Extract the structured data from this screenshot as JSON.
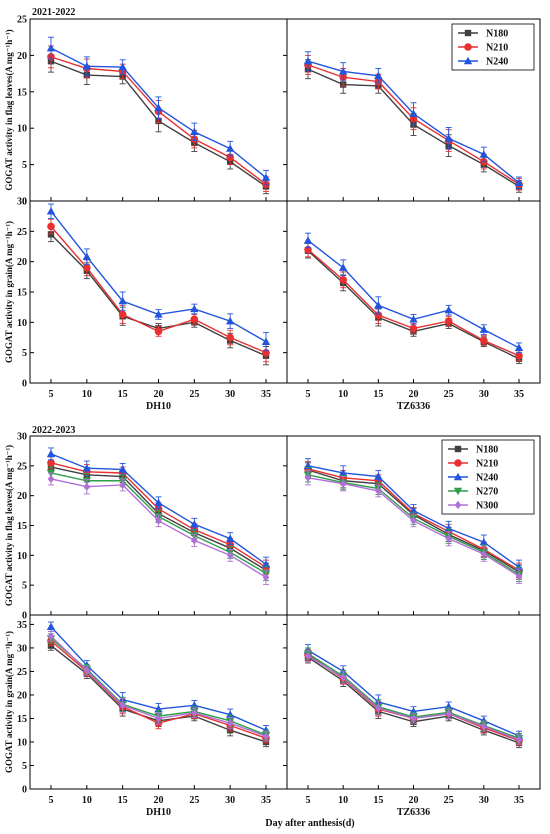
{
  "figure": {
    "x_axis_label": "Day after anthesis(d)"
  },
  "chart_data": [
    {
      "type": "line",
      "year": "2021-2022",
      "ylabel_leaf": "GOGAT activity in flag leaves(A mg⁻¹h⁻¹)",
      "ylabel_grain": "GOGAT activity in grain(A mg⁻¹h⁻¹)",
      "x": [
        5,
        10,
        15,
        20,
        25,
        30,
        35
      ],
      "leaf_ylim": [
        0,
        25
      ],
      "leaf_yticks": [
        0,
        5,
        10,
        15,
        20,
        25
      ],
      "grain_ylim": [
        0,
        30
      ],
      "grain_yticks": [
        0,
        5,
        10,
        15,
        20,
        25,
        30
      ],
      "legend_position": "top-right",
      "cultivars": [
        "DH10",
        "TZ6336"
      ],
      "series": [
        {
          "name": "N180",
          "color": "#404040",
          "marker": "square",
          "leaf": [
            [
              19.2,
              17.3,
              17.1,
              11.0,
              8.0,
              5.4,
              2.0
            ],
            [
              18.1,
              16.0,
              15.8,
              10.5,
              7.6,
              5.0,
              2.0
            ]
          ],
          "leaf_err": [
            [
              1.5,
              1.3,
              1.0,
              1.5,
              1.2,
              1.0,
              1.0
            ],
            [
              1.3,
              1.2,
              1.0,
              1.5,
              1.5,
              1.0,
              0.8
            ]
          ],
          "grain": [
            [
              24.5,
              18.5,
              11.0,
              9.0,
              10.0,
              7.0,
              4.5
            ],
            [
              21.8,
              16.5,
              10.8,
              8.5,
              9.8,
              6.8,
              4.0
            ]
          ],
          "grain_err": [
            [
              1.2,
              1.3,
              1.5,
              0.8,
              0.8,
              1.2,
              1.5
            ],
            [
              1.2,
              1.3,
              1.4,
              0.8,
              0.8,
              0.8,
              0.8
            ]
          ]
        },
        {
          "name": "N210",
          "color": "#e83030",
          "marker": "circle",
          "leaf": [
            [
              19.8,
              18.2,
              17.8,
              12.3,
              8.5,
              6.0,
              2.3
            ],
            [
              18.7,
              17.0,
              16.4,
              11.3,
              8.3,
              5.4,
              2.3
            ]
          ],
          "leaf_err": [
            [
              1.5,
              1.3,
              1.0,
              1.5,
              1.2,
              1.0,
              1.0
            ],
            [
              1.3,
              1.2,
              1.0,
              1.5,
              1.5,
              1.0,
              0.8
            ]
          ],
          "grain": [
            [
              25.8,
              19.0,
              11.3,
              8.5,
              10.5,
              7.5,
              5.0
            ],
            [
              22.0,
              17.0,
              11.2,
              9.0,
              10.2,
              7.0,
              4.5
            ]
          ],
          "grain_err": [
            [
              1.2,
              1.3,
              1.5,
              0.8,
              0.8,
              1.2,
              1.5
            ],
            [
              1.2,
              1.3,
              1.4,
              0.8,
              0.8,
              0.8,
              0.8
            ]
          ]
        },
        {
          "name": "N240",
          "color": "#2255dd",
          "marker": "triangle-up",
          "leaf": [
            [
              21.0,
              18.5,
              18.4,
              12.8,
              9.5,
              7.2,
              3.2
            ],
            [
              19.2,
              17.8,
              17.2,
              12.0,
              8.6,
              6.4,
              2.5
            ]
          ],
          "leaf_err": [
            [
              1.5,
              1.3,
              1.0,
              1.5,
              1.2,
              1.0,
              1.0
            ],
            [
              1.3,
              1.2,
              1.0,
              1.5,
              1.5,
              1.0,
              0.8
            ]
          ],
          "grain": [
            [
              28.3,
              20.8,
              13.5,
              11.3,
              12.2,
              10.2,
              6.8
            ],
            [
              23.5,
              19.0,
              12.8,
              10.5,
              12.0,
              8.8,
              5.8
            ]
          ],
          "grain_err": [
            [
              1.2,
              1.3,
              1.5,
              0.8,
              0.8,
              1.2,
              1.5
            ],
            [
              1.2,
              1.3,
              1.4,
              0.8,
              0.8,
              0.8,
              0.8
            ]
          ]
        }
      ]
    },
    {
      "type": "line",
      "year": "2022-2023",
      "ylabel_leaf": "GOGAT activity in flag leaves(A mg⁻¹h⁻¹)",
      "ylabel_grain": "GOGAT activity in grain(A mg⁻¹h⁻¹)",
      "x": [
        5,
        10,
        15,
        20,
        25,
        30,
        35
      ],
      "leaf_ylim": [
        0,
        30
      ],
      "leaf_yticks": [
        0,
        5,
        10,
        15,
        20,
        25,
        30
      ],
      "grain_ylim": [
        0,
        37
      ],
      "grain_yticks": [
        0,
        5,
        10,
        15,
        20,
        25,
        30,
        35
      ],
      "legend_position": "top-right",
      "cultivars": [
        "DH10",
        "TZ6336"
      ],
      "series": [
        {
          "name": "N180",
          "color": "#404040",
          "marker": "square",
          "leaf": [
            [
              24.8,
              23.5,
              23.2,
              17.0,
              13.8,
              11.2,
              7.5
            ],
            [
              24.3,
              22.5,
              22.0,
              16.8,
              13.5,
              10.8,
              7.2
            ]
          ],
          "leaf_err": [
            [
              1.0,
              1.2,
              1.0,
              1.0,
              1.0,
              1.0,
              1.2
            ],
            [
              1.2,
              1.2,
              1.0,
              1.0,
              1.2,
              1.2,
              1.2
            ]
          ],
          "grain": [
            [
              30.5,
              24.5,
              17.0,
              14.5,
              15.5,
              12.5,
              10.0
            ],
            [
              28.0,
              23.0,
              16.5,
              14.3,
              15.5,
              12.5,
              9.8
            ]
          ],
          "grain_err": [
            [
              1.0,
              1.0,
              1.5,
              1.2,
              1.0,
              1.2,
              1.0
            ],
            [
              1.2,
              1.2,
              1.5,
              1.0,
              1.0,
              1.0,
              1.0
            ]
          ]
        },
        {
          "name": "N210",
          "color": "#e83030",
          "marker": "circle",
          "leaf": [
            [
              25.5,
              24.0,
              23.8,
              17.8,
              14.3,
              11.8,
              8.0
            ],
            [
              24.5,
              23.0,
              22.5,
              17.0,
              14.0,
              11.0,
              7.5
            ]
          ],
          "leaf_err": [
            [
              1.0,
              1.2,
              1.0,
              1.0,
              1.0,
              1.0,
              1.2
            ],
            [
              1.2,
              1.2,
              1.0,
              1.0,
              1.2,
              1.2,
              1.2
            ]
          ],
          "grain": [
            [
              31.5,
              25.0,
              17.5,
              14.0,
              16.0,
              13.5,
              10.8
            ],
            [
              28.5,
              23.5,
              17.0,
              15.0,
              16.0,
              13.0,
              10.3
            ]
          ],
          "grain_err": [
            [
              1.0,
              1.0,
              1.5,
              1.2,
              1.0,
              1.2,
              1.0
            ],
            [
              1.2,
              1.2,
              1.5,
              1.0,
              1.0,
              1.0,
              1.0
            ]
          ]
        },
        {
          "name": "N240",
          "color": "#2255dd",
          "marker": "triangle-up",
          "leaf": [
            [
              27.0,
              24.6,
              24.4,
              18.8,
              15.2,
              12.8,
              8.5
            ],
            [
              25.0,
              23.8,
              23.2,
              17.5,
              14.5,
              12.2,
              8.0
            ]
          ],
          "leaf_err": [
            [
              1.0,
              1.2,
              1.0,
              1.0,
              1.0,
              1.0,
              1.2
            ],
            [
              1.2,
              1.2,
              1.0,
              1.0,
              1.2,
              1.2,
              1.2
            ]
          ],
          "grain": [
            [
              34.5,
              26.3,
              19.0,
              17.0,
              17.8,
              15.8,
              12.5
            ],
            [
              29.5,
              25.0,
              18.5,
              16.5,
              17.5,
              14.5,
              11.3
            ]
          ],
          "grain_err": [
            [
              1.0,
              1.0,
              1.5,
              1.2,
              1.0,
              1.2,
              1.0
            ],
            [
              1.2,
              1.2,
              1.5,
              1.0,
              1.0,
              1.0,
              1.0
            ]
          ]
        },
        {
          "name": "N270",
          "color": "#2e9e4a",
          "marker": "triangle-down",
          "leaf": [
            [
              23.8,
              22.5,
              22.5,
              16.5,
              13.3,
              10.5,
              7.0
            ],
            [
              23.5,
              22.2,
              21.2,
              16.2,
              13.2,
              10.5,
              6.8
            ]
          ],
          "leaf_err": [
            [
              1.0,
              1.2,
              1.0,
              1.0,
              1.0,
              1.0,
              1.2
            ],
            [
              1.2,
              1.2,
              1.0,
              1.0,
              1.2,
              1.2,
              1.2
            ]
          ],
          "grain": [
            [
              32.0,
              25.5,
              18.0,
              15.5,
              16.5,
              14.5,
              11.5
            ],
            [
              28.8,
              24.0,
              17.5,
              15.3,
              16.3,
              13.5,
              10.8
            ]
          ],
          "grain_err": [
            [
              1.0,
              1.0,
              1.5,
              1.2,
              1.0,
              1.2,
              1.0
            ],
            [
              1.2,
              1.2,
              1.5,
              1.0,
              1.0,
              1.0,
              1.0
            ]
          ]
        },
        {
          "name": "N300",
          "color": "#b070d8",
          "marker": "diamond",
          "leaf": [
            [
              22.8,
              21.5,
              21.8,
              15.8,
              12.5,
              10.0,
              6.3
            ],
            [
              23.0,
              22.0,
              20.8,
              15.8,
              12.8,
              10.2,
              6.5
            ]
          ],
          "leaf_err": [
            [
              1.0,
              1.2,
              1.0,
              1.0,
              1.0,
              1.0,
              1.2
            ],
            [
              1.2,
              1.2,
              1.0,
              1.0,
              1.2,
              1.2,
              1.2
            ]
          ],
          "grain": [
            [
              32.5,
              25.2,
              17.8,
              15.0,
              16.2,
              14.0,
              11.2
            ],
            [
              28.3,
              23.7,
              17.2,
              15.0,
              16.0,
              13.3,
              10.5
            ]
          ],
          "grain_err": [
            [
              1.0,
              1.0,
              1.5,
              1.2,
              1.0,
              1.2,
              1.0
            ],
            [
              1.2,
              1.2,
              1.5,
              1.0,
              1.0,
              1.0,
              1.0
            ]
          ]
        }
      ]
    }
  ]
}
